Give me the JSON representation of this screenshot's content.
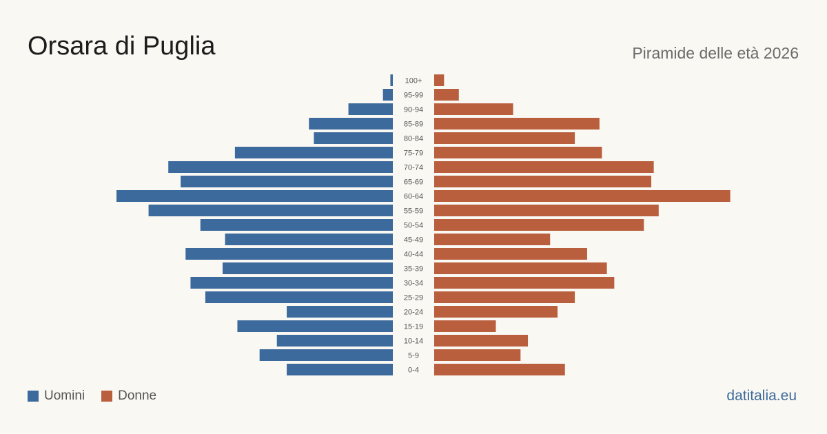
{
  "header": {
    "title": "Orsara di Puglia",
    "subtitle": "Piramide delle età 2026"
  },
  "legend": {
    "men_label": "Uomini",
    "women_label": "Donne"
  },
  "footer": {
    "source": "datitalia.eu"
  },
  "colors": {
    "men": "#3c6a9c",
    "women": "#ba5f3e"
  },
  "chart_data": {
    "type": "bar",
    "orientation": "horizontal-pyramid",
    "title": "Orsara di Puglia",
    "subtitle": "Piramide delle età 2026",
    "categories": [
      "100+",
      "95-99",
      "90-94",
      "85-89",
      "80-84",
      "75-79",
      "70-74",
      "65-69",
      "60-64",
      "55-59",
      "50-54",
      "45-49",
      "40-44",
      "35-39",
      "30-34",
      "25-29",
      "20-24",
      "15-19",
      "10-14",
      "5-9",
      "0-4"
    ],
    "series": [
      {
        "name": "Uomini",
        "values": [
          1,
          4,
          18,
          34,
          32,
          64,
          91,
          86,
          112,
          99,
          78,
          68,
          84,
          69,
          82,
          76,
          43,
          63,
          47,
          54,
          43
        ]
      },
      {
        "name": "Donne",
        "values": [
          4,
          10,
          32,
          67,
          57,
          68,
          89,
          88,
          120,
          91,
          85,
          47,
          62,
          70,
          73,
          57,
          50,
          25,
          38,
          35,
          53
        ]
      }
    ],
    "legend_position": "bottom-left",
    "grid": false
  }
}
